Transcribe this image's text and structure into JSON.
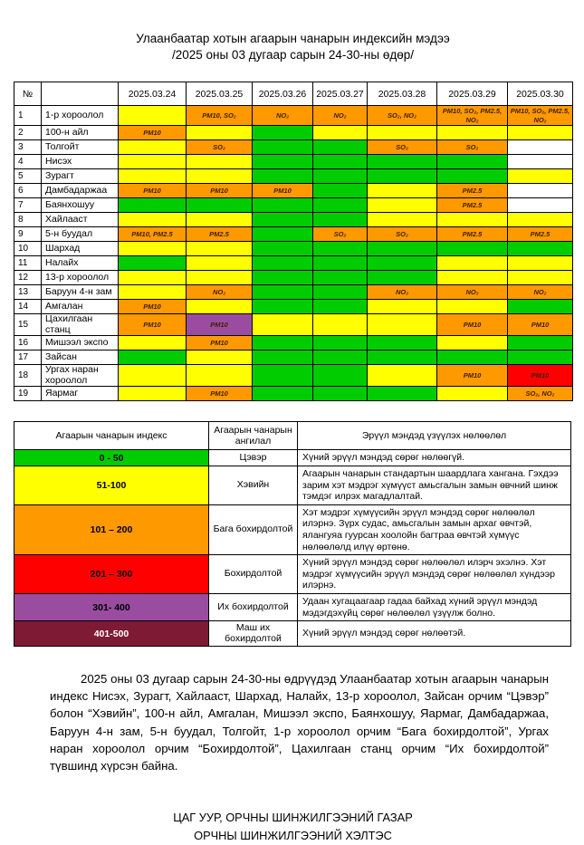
{
  "title": {
    "line1": "Улаанбаатар хотын агаарын чанарын индексийн мэдээ",
    "line2": "/2025 оны 03 дугаар сарын 24-30-ны өдөр/"
  },
  "colors": {
    "green": "#00cc00",
    "yellow": "#ffff00",
    "orange": "#ff9900",
    "red": "#ff0000",
    "purple": "#9a4da0",
    "maroon": "#7e1a33",
    "white": "#ffffff",
    "cell_text": "#3d1f00"
  },
  "aqi_table": {
    "headers": [
      "№",
      "",
      "2025.03.24",
      "2025.03.25",
      "2025.03.26",
      "2025.03.27",
      "2025.03.28",
      "2025.03.29",
      "2025.03.30"
    ],
    "rows": [
      {
        "no": "1",
        "name": "1-р хороолол",
        "cells": [
          [
            "yellow",
            ""
          ],
          [
            "orange",
            "PM10, SO₂"
          ],
          [
            "orange",
            "NO₂"
          ],
          [
            "orange",
            "NO₂"
          ],
          [
            "orange",
            "SO₂, NO₂"
          ],
          [
            "orange",
            "PM10, SO₂, PM2.5, NO₂"
          ],
          [
            "orange",
            "PM10, SO₂, PM2.5, NO₂"
          ]
        ]
      },
      {
        "no": "2",
        "name": "100-н айл",
        "cells": [
          [
            "orange",
            "PM10"
          ],
          [
            "yellow",
            ""
          ],
          [
            "green",
            ""
          ],
          [
            "yellow",
            ""
          ],
          [
            "yellow",
            ""
          ],
          [
            "yellow",
            ""
          ],
          [
            "yellow",
            ""
          ]
        ]
      },
      {
        "no": "3",
        "name": "Толгойт",
        "cells": [
          [
            "yellow",
            ""
          ],
          [
            "orange",
            "SO₂"
          ],
          [
            "green",
            ""
          ],
          [
            "green",
            ""
          ],
          [
            "orange",
            "SO₂"
          ],
          [
            "orange",
            "SO₂"
          ],
          [
            "white",
            ""
          ]
        ]
      },
      {
        "no": "4",
        "name": "Нисэх",
        "cells": [
          [
            "yellow",
            ""
          ],
          [
            "yellow",
            ""
          ],
          [
            "green",
            ""
          ],
          [
            "green",
            ""
          ],
          [
            "green",
            ""
          ],
          [
            "green",
            ""
          ],
          [
            "white",
            ""
          ]
        ]
      },
      {
        "no": "5",
        "name": "Зурагт",
        "cells": [
          [
            "yellow",
            ""
          ],
          [
            "yellow",
            ""
          ],
          [
            "green",
            ""
          ],
          [
            "green",
            ""
          ],
          [
            "green",
            ""
          ],
          [
            "green",
            ""
          ],
          [
            "yellow",
            ""
          ]
        ]
      },
      {
        "no": "6",
        "name": "Дамбадаржаа",
        "cells": [
          [
            "orange",
            "PM10"
          ],
          [
            "orange",
            "PM10"
          ],
          [
            "orange",
            "PM10"
          ],
          [
            "green",
            ""
          ],
          [
            "yellow",
            ""
          ],
          [
            "orange",
            "PM2.5"
          ],
          [
            "white",
            ""
          ]
        ]
      },
      {
        "no": "7",
        "name": "Баянхошуу",
        "cells": [
          [
            "green",
            ""
          ],
          [
            "green",
            ""
          ],
          [
            "green",
            ""
          ],
          [
            "green",
            ""
          ],
          [
            "yellow",
            ""
          ],
          [
            "orange",
            "PM2.5"
          ],
          [
            "white",
            ""
          ]
        ]
      },
      {
        "no": "8",
        "name": "Хайлааст",
        "cells": [
          [
            "yellow",
            ""
          ],
          [
            "yellow",
            ""
          ],
          [
            "green",
            ""
          ],
          [
            "green",
            ""
          ],
          [
            "yellow",
            ""
          ],
          [
            "yellow",
            ""
          ],
          [
            "yellow",
            ""
          ]
        ]
      },
      {
        "no": "9",
        "name": "5-н буудал",
        "cells": [
          [
            "orange",
            "PM10, PM2.5"
          ],
          [
            "orange",
            "PM2.5"
          ],
          [
            "green",
            ""
          ],
          [
            "orange",
            "SO₂"
          ],
          [
            "orange",
            "SO₂"
          ],
          [
            "orange",
            "PM2.5"
          ],
          [
            "orange",
            "PM2.5"
          ]
        ]
      },
      {
        "no": "10",
        "name": "Шархад",
        "cells": [
          [
            "yellow",
            ""
          ],
          [
            "yellow",
            ""
          ],
          [
            "green",
            ""
          ],
          [
            "green",
            ""
          ],
          [
            "green",
            ""
          ],
          [
            "green",
            ""
          ],
          [
            "green",
            ""
          ]
        ]
      },
      {
        "no": "11",
        "name": "Налайх",
        "cells": [
          [
            "green",
            ""
          ],
          [
            "yellow",
            ""
          ],
          [
            "green",
            ""
          ],
          [
            "green",
            ""
          ],
          [
            "green",
            ""
          ],
          [
            "yellow",
            ""
          ],
          [
            "yellow",
            ""
          ]
        ]
      },
      {
        "no": "12",
        "name": "13-р хороолол",
        "cells": [
          [
            "yellow",
            ""
          ],
          [
            "yellow",
            ""
          ],
          [
            "green",
            ""
          ],
          [
            "green",
            ""
          ],
          [
            "green",
            ""
          ],
          [
            "yellow",
            ""
          ],
          [
            "yellow",
            ""
          ]
        ]
      },
      {
        "no": "13",
        "name": "Баруун 4-н зам",
        "cells": [
          [
            "yellow",
            ""
          ],
          [
            "orange",
            "NO₂"
          ],
          [
            "green",
            ""
          ],
          [
            "green",
            ""
          ],
          [
            "orange",
            "NO₂"
          ],
          [
            "orange",
            "NO₂"
          ],
          [
            "orange",
            "NO₂"
          ]
        ]
      },
      {
        "no": "14",
        "name": "Амгалан",
        "cells": [
          [
            "orange",
            "PM10"
          ],
          [
            "yellow",
            ""
          ],
          [
            "green",
            ""
          ],
          [
            "green",
            ""
          ],
          [
            "yellow",
            ""
          ],
          [
            "yellow",
            ""
          ],
          [
            "green",
            ""
          ]
        ]
      },
      {
        "no": "15",
        "name": "Цахилгаан станц",
        "cells": [
          [
            "orange",
            "PM10"
          ],
          [
            "purple",
            "PM10"
          ],
          [
            "yellow",
            ""
          ],
          [
            "yellow",
            ""
          ],
          [
            "yellow",
            ""
          ],
          [
            "orange",
            "PM10"
          ],
          [
            "orange",
            "PM10"
          ]
        ]
      },
      {
        "no": "16",
        "name": "Мишээл экспо",
        "cells": [
          [
            "yellow",
            ""
          ],
          [
            "orange",
            "PM10"
          ],
          [
            "green",
            ""
          ],
          [
            "green",
            ""
          ],
          [
            "green",
            ""
          ],
          [
            "yellow",
            ""
          ],
          [
            "green",
            ""
          ]
        ]
      },
      {
        "no": "17",
        "name": "Зайсан",
        "cells": [
          [
            "green",
            ""
          ],
          [
            "yellow",
            ""
          ],
          [
            "green",
            ""
          ],
          [
            "green",
            ""
          ],
          [
            "green",
            ""
          ],
          [
            "green",
            ""
          ],
          [
            "green",
            ""
          ]
        ]
      },
      {
        "no": "18",
        "name": "Ургах наран хороолол",
        "cells": [
          [
            "yellow",
            ""
          ],
          [
            "yellow",
            ""
          ],
          [
            "green",
            ""
          ],
          [
            "green",
            ""
          ],
          [
            "yellow",
            ""
          ],
          [
            "orange",
            "PM10"
          ],
          [
            "red",
            "PM10"
          ]
        ]
      },
      {
        "no": "19",
        "name": "Яармаг",
        "cells": [
          [
            "yellow",
            ""
          ],
          [
            "orange",
            "PM10"
          ],
          [
            "green",
            ""
          ],
          [
            "green",
            ""
          ],
          [
            "green",
            ""
          ],
          [
            "yellow",
            ""
          ],
          [
            "orange",
            "SO₂, NO₂"
          ]
        ]
      }
    ]
  },
  "legend_table": {
    "headers": [
      "Агаарын чанарын индекс",
      "Агаарын чанарын ангилал",
      "Эрүүл мэндэд үзүүлэх нөлөөлөл"
    ],
    "rows": [
      {
        "range": "0 - 50",
        "color": "green",
        "text_color": "black",
        "category": "Цэвэр",
        "effect": "Хүний эрүүл мэндэд сөрөг нөлөөгүй."
      },
      {
        "range": "51-100",
        "color": "yellow",
        "text_color": "black",
        "category": "Хэвийн",
        "effect": "Агаарын чанарын стандартын шаардлага хангана. Гэхдээ зарим хэт мэдрэг хүмүүст  амьсгалын замын өвчний шинж тэмдэг илрэх магадлалтай."
      },
      {
        "range": "101 – 200",
        "color": "orange",
        "text_color": "black",
        "category": "Бага бохирдолтой",
        "effect": "Хэт мэдрэг хүмүүсийн эрүүл мэндэд  сөрөг нөлөөлөл илэрнэ. Зүрх судас, амьсгалын замын архаг өвчтэй, ялангуяа гуурсан хоолойн багтраа өвчтэй хүмүүс нөлөөлөлд илүү өртөнө."
      },
      {
        "range": "201 – 300",
        "color": "red",
        "text_color": "black",
        "category": "Бохирдолтой",
        "effect": "Хүний эрүүл мэндэд сөрөг нөлөөлөл илэрч эхэлнэ. Хэт мэдрэг хүмүүсийн эрүүл мэндэд сөрөг нөлөөлөл хүндээр илэрнэ."
      },
      {
        "range": "301- 400",
        "color": "purple",
        "text_color": "black",
        "category": "Их бохирдолтой",
        "effect": "Удаан хугацаагаар гадаа байхад хүний эрүүл мэндэд мэдэгдэхүйц сөрөг нөлөөлөл үзүүлж болно."
      },
      {
        "range": "401-500",
        "color": "maroon",
        "text_color": "white",
        "category": "Маш их бохирдолтой",
        "effect": "Хүний эрүүл мэндэд сөрөг нөлөөтэй."
      }
    ]
  },
  "paragraph": "2025 оны 03 дугаар сарын 24-30-ны өдрүүдэд Улаанбаатар хотын агаарын чанарын индекс Нисэх, Зурагт, Хайлааст, Шархад, Налайх, 13-р хороолол, Зайсан орчим “Цэвэр” болон “Хэвийн”, 100-н айл, Амгалан, Мишээл экспо, Баянхошуу, Яармаг, Дамбадаржаа, Баруун 4-н зам, 5-н буудал, Толгойт, 1-р хороолол орчим “Бага бохирдолтой”, Ургах наран хороолол орчим “Бохирдолтой”, Цахилгаан станц орчим “Их бохирдолтой” түвшинд хүрсэн байна.",
  "footer": {
    "line1": "ЦАГ УУР, ОРЧНЫ ШИНЖИЛГЭЭНИЙ ГАЗАР",
    "line2": "ОРЧНЫ ШИНЖИЛГЭЭНИЙ ХЭЛТЭС"
  }
}
